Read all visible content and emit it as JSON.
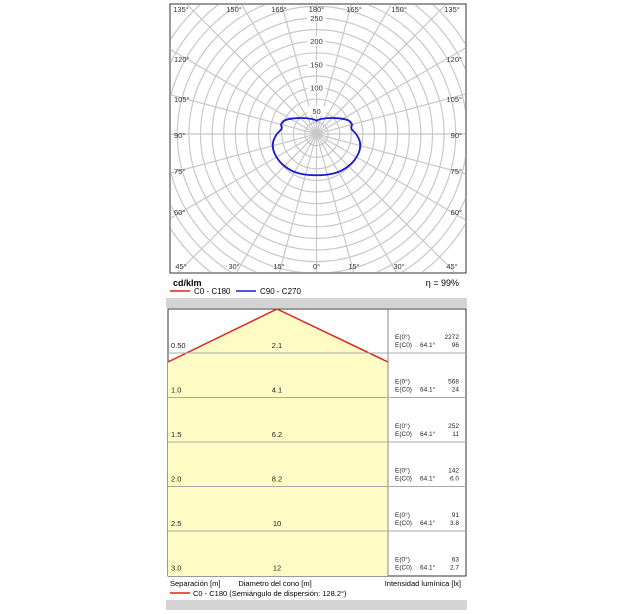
{
  "chart_data": [
    {
      "type": "polar",
      "unit_label": "cd/klm",
      "efficiency_label": "η = 99%",
      "radial_ticks": [
        50,
        100,
        150,
        200,
        250
      ],
      "rmax": 275,
      "angle_ticks_top": [
        "135°",
        "150°",
        "165°",
        "180°",
        "165°",
        "150°",
        "135°"
      ],
      "angle_ticks_left": [
        "120°",
        "105°",
        "90°",
        "75°",
        "60°"
      ],
      "angle_ticks_right": [
        "120°",
        "105°",
        "90°",
        "75°",
        "60°"
      ],
      "angle_ticks_bottom": [
        "45°",
        "30°",
        "15°",
        "0°",
        "15°",
        "30°",
        "45°"
      ],
      "series": [
        {
          "name": "C0 - C180",
          "color": "#dd2222",
          "values": []
        },
        {
          "name": "C90 - C270",
          "color": "#1a1ad0",
          "angles_deg": [
            0,
            10,
            20,
            30,
            40,
            50,
            60,
            70,
            80,
            90,
            95,
            100,
            105,
            108
          ],
          "values": [
            89,
            90,
            92,
            95,
            97,
            99,
            100,
            100,
            96,
            86,
            79,
            75,
            80,
            78
          ]
        }
      ]
    },
    {
      "type": "cone",
      "rows": [
        {
          "separation": "0.50",
          "diameter": "2.1",
          "e0_label": "E(0°)",
          "e0": "2272",
          "ec0_label": "E(C0)",
          "angle": "64.1°",
          "ec0": "96"
        },
        {
          "separation": "1.0",
          "diameter": "4.1",
          "e0_label": "E(0°)",
          "e0": "568",
          "ec0_label": "E(C0)",
          "angle": "64.1°",
          "ec0": "24"
        },
        {
          "separation": "1.5",
          "diameter": "6.2",
          "e0_label": "E(0°)",
          "e0": "252",
          "ec0_label": "E(C0)",
          "angle": "64.1°",
          "ec0": "11"
        },
        {
          "separation": "2.0",
          "diameter": "8.2",
          "e0_label": "E(0°)",
          "e0": "142",
          "ec0_label": "E(C0)",
          "angle": "64.1°",
          "ec0": "6.0"
        },
        {
          "separation": "2.5",
          "diameter": "10",
          "e0_label": "E(0°)",
          "e0": "91",
          "ec0_label": "E(C0)",
          "angle": "64.1°",
          "ec0": "3.8"
        },
        {
          "separation": "3.0",
          "diameter": "12",
          "e0_label": "E(0°)",
          "e0": "63",
          "ec0_label": "E(C0)",
          "angle": "64.1°",
          "ec0": "2.7"
        }
      ],
      "footer": {
        "separation": "Separación [m]",
        "diameter": "Diametro del cono [m]",
        "intensity": "Intensidad lumínica [lx]"
      },
      "legend": "C0 - C180 (Semiángulo de dispersión: 128.2°)"
    }
  ],
  "colors": {
    "fill": "#fefcc4",
    "grid": "#c8c8c8",
    "frame": "#333333",
    "red": "#dd2222",
    "blue": "#1a1ad0",
    "band": "#d4d4d4"
  }
}
